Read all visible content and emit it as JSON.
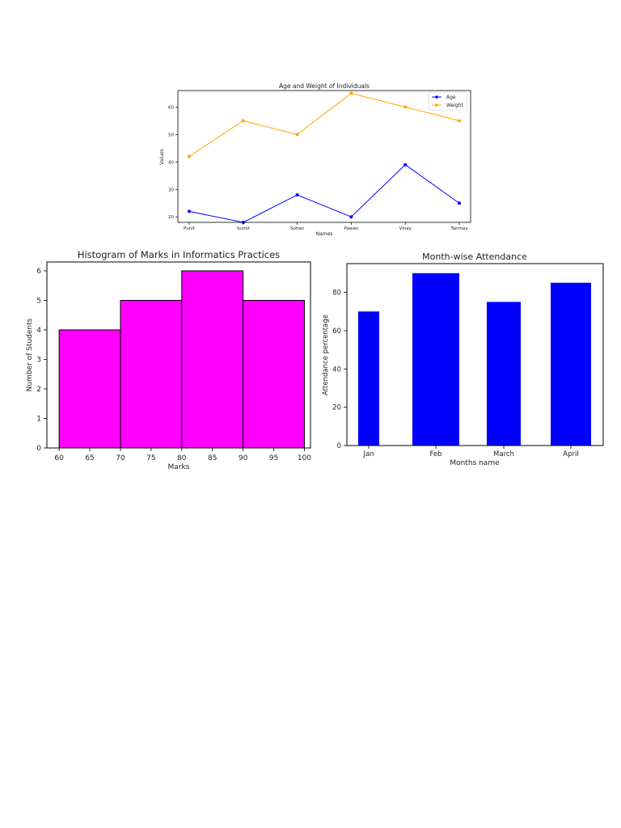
{
  "chart_data": [
    {
      "type": "line",
      "title": "Age and Weight of Individuals",
      "xlabel": "Names",
      "ylabel": "Values",
      "categories": [
        "Punit",
        "Sumit",
        "Sohan",
        "Pawan",
        "Vinay",
        "Tanmay"
      ],
      "ylim": [
        18,
        66
      ],
      "yticks": [
        20,
        30,
        40,
        50,
        60
      ],
      "grid": false,
      "legend": "top-right",
      "series": [
        {
          "name": "Age",
          "color": "#0000ff",
          "values": [
            22,
            18,
            28,
            20,
            39,
            25
          ]
        },
        {
          "name": "Weight",
          "color": "#ffa500",
          "values": [
            42,
            55,
            50,
            65,
            60,
            55
          ]
        }
      ]
    },
    {
      "type": "bar",
      "title": "Histogram of Marks in Informatics Practices",
      "xlabel": "Marks",
      "ylabel": "Number of Students",
      "bins": [
        [
          60,
          70
        ],
        [
          70,
          80
        ],
        [
          80,
          90
        ],
        [
          90,
          100
        ]
      ],
      "values": [
        4,
        5,
        6,
        5
      ],
      "xlim": [
        58,
        101
      ],
      "ylim": [
        0,
        6.3
      ],
      "xticks": [
        60,
        65,
        70,
        75,
        80,
        85,
        90,
        95,
        100
      ],
      "yticks": [
        0,
        1,
        2,
        3,
        4,
        5,
        6
      ],
      "color": "#ff00ff",
      "edge_color": "#000000",
      "grid": false
    },
    {
      "type": "bar",
      "title": "Month-wise Attendance",
      "xlabel": "Months name",
      "ylabel": "Attendance percentage",
      "categories": [
        "Jan",
        "Feb",
        "March",
        "April"
      ],
      "values": [
        70,
        90,
        75,
        85
      ],
      "ylim": [
        0,
        95
      ],
      "yticks": [
        0,
        20,
        40,
        60,
        80
      ],
      "color": "#0000ff",
      "grid": false
    }
  ]
}
